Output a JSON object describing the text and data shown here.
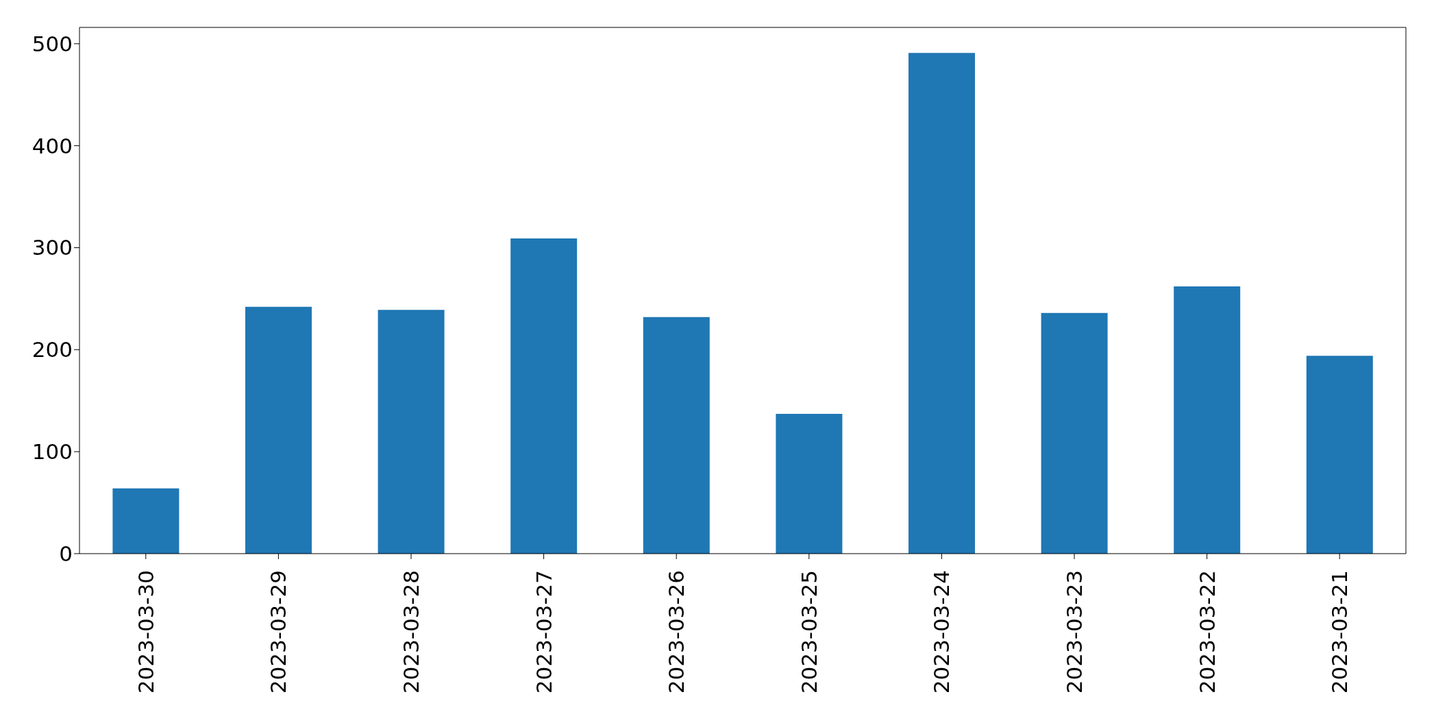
{
  "chart_data": {
    "type": "bar",
    "categories": [
      "2023-03-30",
      "2023-03-29",
      "2023-03-28",
      "2023-03-27",
      "2023-03-26",
      "2023-03-25",
      "2023-03-24",
      "2023-03-23",
      "2023-03-22",
      "2023-03-21"
    ],
    "values": [
      64,
      242,
      239,
      309,
      232,
      137,
      491,
      236,
      262,
      194
    ],
    "color": "#1f77b4",
    "ylim": [
      0,
      516
    ],
    "yticks": [
      0,
      100,
      200,
      300,
      400,
      500
    ],
    "grid": false
  }
}
